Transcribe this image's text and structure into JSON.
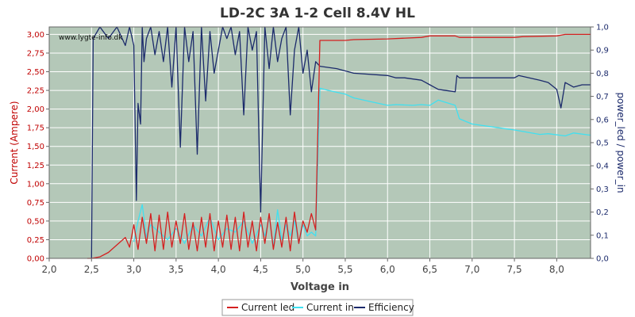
{
  "chart_data": {
    "type": "line",
    "title": "LD-2C 3A 1-2 Cell 8.4V HL",
    "watermark": "www.lygte-info.dk",
    "xlabel": "Voltage in",
    "ylabel_left": "Current (Ampere)",
    "ylabel_right": "power_led / power_in",
    "xlim": [
      2.0,
      8.4
    ],
    "ylim_left": [
      0,
      3.1
    ],
    "ylim_right": [
      0,
      1.0
    ],
    "grid": true,
    "legend_position": "bottom-center",
    "background_color": "#b4c8b8",
    "x_ticks": [
      "2,0",
      "2,5",
      "3,0",
      "3,5",
      "4,0",
      "4,5",
      "5,0",
      "5,5",
      "6,0",
      "6,5",
      "7,0",
      "7,5",
      "8,0"
    ],
    "x_tick_values": [
      2.0,
      2.5,
      3.0,
      3.5,
      4.0,
      4.5,
      5.0,
      5.5,
      6.0,
      6.5,
      7.0,
      7.5,
      8.0
    ],
    "y_left_ticks": [
      "0,00",
      "0,25",
      "0,50",
      "0,75",
      "1,00",
      "1,25",
      "1,50",
      "1,75",
      "2,00",
      "2,25",
      "2,50",
      "2,75",
      "3,00"
    ],
    "y_left_tick_values": [
      0,
      0.25,
      0.5,
      0.75,
      1.0,
      1.25,
      1.5,
      1.75,
      2.0,
      2.25,
      2.5,
      2.75,
      3.0
    ],
    "y_right_ticks": [
      "0,0",
      "0,1",
      "0,2",
      "0,3",
      "0,4",
      "0,5",
      "0,6",
      "0,7",
      "0,8",
      "0,9",
      "1,0"
    ],
    "y_right_tick_values": [
      0,
      0.1,
      0.2,
      0.3,
      0.4,
      0.5,
      0.6,
      0.7,
      0.8,
      0.9,
      1.0
    ],
    "series": [
      {
        "name": "Current led",
        "axis": "left",
        "color": "#d42020",
        "x": [
          2.45,
          2.5,
          2.6,
          2.7,
          2.8,
          2.9,
          2.95,
          3.0,
          3.05,
          3.1,
          3.15,
          3.2,
          3.25,
          3.3,
          3.35,
          3.4,
          3.45,
          3.5,
          3.55,
          3.6,
          3.65,
          3.7,
          3.75,
          3.8,
          3.85,
          3.9,
          3.95,
          4.0,
          4.05,
          4.1,
          4.15,
          4.2,
          4.25,
          4.3,
          4.35,
          4.4,
          4.45,
          4.5,
          4.55,
          4.6,
          4.65,
          4.7,
          4.75,
          4.8,
          4.85,
          4.9,
          4.95,
          5.0,
          5.05,
          5.1,
          5.15,
          5.2,
          5.5,
          5.6,
          6.0,
          6.4,
          6.5,
          6.8,
          6.85,
          7.5,
          7.6,
          8.0,
          8.1,
          8.4
        ],
        "y": [
          0.0,
          0.0,
          0.02,
          0.08,
          0.18,
          0.28,
          0.15,
          0.45,
          0.12,
          0.55,
          0.2,
          0.6,
          0.1,
          0.58,
          0.12,
          0.62,
          0.15,
          0.5,
          0.2,
          0.6,
          0.12,
          0.48,
          0.1,
          0.55,
          0.15,
          0.6,
          0.1,
          0.5,
          0.15,
          0.58,
          0.12,
          0.55,
          0.1,
          0.62,
          0.15,
          0.5,
          0.1,
          0.55,
          0.2,
          0.6,
          0.12,
          0.48,
          0.15,
          0.55,
          0.1,
          0.62,
          0.2,
          0.5,
          0.35,
          0.6,
          0.38,
          2.92,
          2.92,
          2.93,
          2.94,
          2.96,
          2.98,
          2.98,
          2.96,
          2.96,
          2.97,
          2.98,
          3.0,
          3.0
        ]
      },
      {
        "name": "Current in",
        "axis": "left",
        "color": "#40e0f0",
        "x": [
          3.0,
          3.05,
          3.1,
          3.15,
          3.2,
          3.3,
          3.4,
          3.5,
          3.6,
          3.7,
          3.8,
          3.9,
          4.0,
          4.1,
          4.2,
          4.3,
          4.4,
          4.5,
          4.55,
          4.6,
          4.65,
          4.7,
          4.75,
          4.8,
          4.85,
          4.9,
          4.95,
          5.0,
          5.05,
          5.1,
          5.15,
          5.2,
          5.3,
          5.5,
          5.6,
          5.8,
          6.0,
          6.1,
          6.3,
          6.4,
          6.5,
          6.6,
          6.8,
          6.85,
          7.0,
          7.5,
          7.8,
          7.9,
          8.1,
          8.2,
          8.4
        ],
        "y": [
          0.22,
          0.5,
          0.72,
          0.28,
          0.45,
          0.35,
          0.25,
          0.4,
          0.2,
          0.45,
          0.3,
          0.55,
          0.25,
          0.4,
          0.35,
          0.5,
          0.2,
          0.45,
          0.3,
          0.55,
          0.15,
          0.65,
          0.25,
          0.45,
          0.3,
          0.5,
          0.2,
          0.45,
          0.3,
          0.35,
          0.3,
          2.28,
          2.25,
          2.2,
          2.15,
          2.1,
          2.05,
          2.06,
          2.05,
          2.06,
          2.05,
          2.12,
          2.05,
          1.87,
          1.8,
          1.72,
          1.66,
          1.67,
          1.64,
          1.68,
          1.65
        ]
      },
      {
        "name": "Efficiency",
        "axis": "right",
        "color": "#1b2a6b",
        "x": [
          2.5,
          2.52,
          2.6,
          2.7,
          2.8,
          2.9,
          2.95,
          3.0,
          3.03,
          3.05,
          3.08,
          3.1,
          3.12,
          3.15,
          3.2,
          3.25,
          3.3,
          3.35,
          3.4,
          3.45,
          3.5,
          3.55,
          3.6,
          3.65,
          3.7,
          3.75,
          3.8,
          3.85,
          3.9,
          3.95,
          4.0,
          4.05,
          4.1,
          4.15,
          4.2,
          4.25,
          4.3,
          4.35,
          4.4,
          4.45,
          4.5,
          4.55,
          4.6,
          4.65,
          4.7,
          4.75,
          4.8,
          4.85,
          4.9,
          4.95,
          5.0,
          5.05,
          5.1,
          5.15,
          5.2,
          5.4,
          5.5,
          5.6,
          6.0,
          6.1,
          6.2,
          6.4,
          6.45,
          6.5,
          6.55,
          6.6,
          6.8,
          6.82,
          6.85,
          7.0,
          7.5,
          7.55,
          7.8,
          7.9,
          8.0,
          8.05,
          8.1,
          8.2,
          8.3,
          8.4
        ],
        "y": [
          0.0,
          0.95,
          1.0,
          0.95,
          1.0,
          0.92,
          1.0,
          0.92,
          0.25,
          0.67,
          0.58,
          1.0,
          0.85,
          0.95,
          1.0,
          0.88,
          0.98,
          0.85,
          1.0,
          0.74,
          1.0,
          0.48,
          1.0,
          0.85,
          0.98,
          0.45,
          1.0,
          0.68,
          0.98,
          0.8,
          0.9,
          1.0,
          0.95,
          1.0,
          0.88,
          0.98,
          0.62,
          1.0,
          0.9,
          0.98,
          0.2,
          1.0,
          0.82,
          1.0,
          0.85,
          0.95,
          1.0,
          0.62,
          0.9,
          1.0,
          0.8,
          0.9,
          0.72,
          0.85,
          0.83,
          0.82,
          0.81,
          0.8,
          0.79,
          0.78,
          0.78,
          0.77,
          0.76,
          0.75,
          0.74,
          0.73,
          0.72,
          0.79,
          0.78,
          0.78,
          0.78,
          0.79,
          0.77,
          0.76,
          0.73,
          0.65,
          0.76,
          0.74,
          0.75,
          0.75
        ]
      }
    ]
  }
}
